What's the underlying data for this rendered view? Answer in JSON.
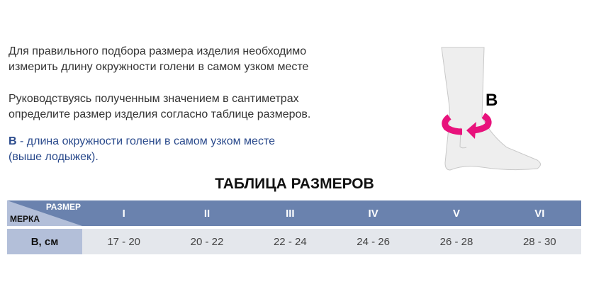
{
  "instructions": {
    "line1": "Для правильного подбора размера изделия необходимо",
    "line2": "измерить длину окружности голени в самом узком месте",
    "line3": "Руководствуясь полученным значением в сантиметрах",
    "line4": "определите размер изделия согласно таблице размеров.",
    "legend_key": "B",
    "legend_text": " - длина окружности голени в самом узком месте",
    "legend_text2": "(выше лодыжек)."
  },
  "illustration": {
    "label": "B",
    "arrow_color": "#e8127c"
  },
  "table": {
    "title": "ТАБЛИЦА РАЗМЕРОВ",
    "corner_top": "РАЗМЕР",
    "corner_bottom": "МЕРКА",
    "sizes": [
      "I",
      "II",
      "III",
      "IV",
      "V",
      "VI"
    ],
    "row_label": "B, см",
    "values": [
      "17 - 20",
      "20 - 22",
      "22 - 24",
      "24 - 26",
      "26 - 28",
      "28 - 30"
    ],
    "header_color": "#6a82ae"
  }
}
